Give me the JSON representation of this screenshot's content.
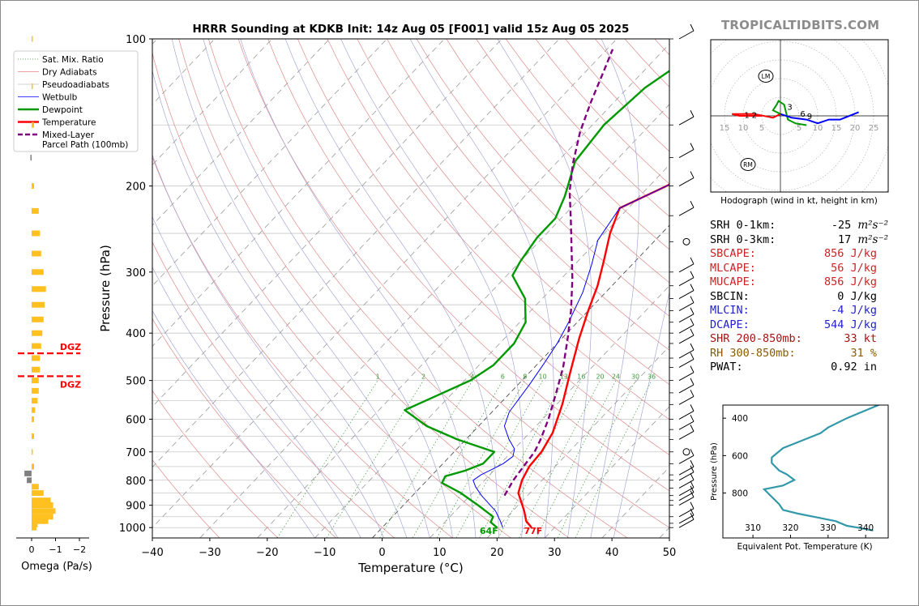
{
  "watermark": "TROPICALTIDBITS.COM",
  "chart_data": [
    {
      "type": "line",
      "name": "skew-t",
      "title": "HRRR Sounding at KDKB Init: 14z Aug 05 [F001] valid 15z Aug 05 2025",
      "xlabel": "Temperature (°C)",
      "ylabel": "Pressure (hPa)",
      "xlim": [
        -40,
        50
      ],
      "ylim": [
        1050,
        100
      ],
      "y_scale": "log",
      "x_ticks": [
        "−40",
        "−30",
        "−20",
        "−10",
        "0",
        "10",
        "20",
        "30",
        "40",
        "50"
      ],
      "y_ticks": [
        "100",
        "200",
        "300",
        "400",
        "500",
        "600",
        "700",
        "800",
        "900",
        "1000"
      ],
      "mixing_ratio_labels": [
        "1",
        "2",
        "4",
        "6",
        "8",
        "10",
        "13",
        "16",
        "20",
        "24",
        "30",
        "36"
      ],
      "legend": {
        "placement": "top-left",
        "entries": [
          {
            "label": "Sat. Mix. Ratio",
            "color": "#2e8b2e",
            "style": "dotted"
          },
          {
            "label": "Dry Adiabats",
            "color": "#e08080",
            "style": "solid"
          },
          {
            "label": "Pseudoadiabats",
            "color": "#c0c0c0",
            "style": "solid"
          },
          {
            "label": "Wetbulb",
            "color": "#0000ff",
            "style": "solid"
          },
          {
            "label": "Dewpoint",
            "color": "#009900",
            "style": "solid"
          },
          {
            "label": "Temperature",
            "color": "#ff0000",
            "style": "solid"
          },
          {
            "label": "Mixed-Layer\nParcel Path (100mb)",
            "color": "#800080",
            "style": "dashed"
          }
        ]
      },
      "surface_labels": {
        "dewpoint": "64F",
        "temperature": "77F"
      },
      "series": [
        {
          "name": "Temperature",
          "color": "#ff0000",
          "points": [
            [
              26,
              1000
            ],
            [
              24,
              970
            ],
            [
              22,
              925
            ],
            [
              18,
              850
            ],
            [
              16.5,
              800
            ],
            [
              15.5,
              750
            ],
            [
              15.2,
              700
            ],
            [
              14,
              640
            ],
            [
              11,
              560
            ],
            [
              7,
              480
            ],
            [
              3,
              410
            ],
            [
              0,
              360
            ],
            [
              -2.5,
              320
            ],
            [
              -5.5,
              285
            ],
            [
              -9,
              250
            ],
            [
              -11.5,
              222
            ],
            [
              -7,
              200
            ],
            [
              -2.5,
              176
            ],
            [
              -2,
              150
            ],
            [
              -1.5,
              122
            ],
            [
              -1,
              110
            ],
            [
              -0.5,
              100
            ]
          ]
        },
        {
          "name": "Dewpoint",
          "color": "#009900",
          "points": [
            [
              20,
              1000
            ],
            [
              18,
              975
            ],
            [
              17.5,
              950
            ],
            [
              13,
              900
            ],
            [
              8,
              850
            ],
            [
              3,
              810
            ],
            [
              2.5,
              785
            ],
            [
              5,
              765
            ],
            [
              7,
              740
            ],
            [
              7,
              700
            ],
            [
              -1.5,
              660
            ],
            [
              -9,
              620
            ],
            [
              -15.5,
              575
            ],
            [
              -13,
              545
            ],
            [
              -9,
              500
            ],
            [
              -7.5,
              465
            ],
            [
              -7.5,
              420
            ],
            [
              -9,
              380
            ],
            [
              -13,
              340
            ],
            [
              -19,
              305
            ],
            [
              -20,
              285
            ],
            [
              -21,
              255
            ],
            [
              -21,
              233
            ],
            [
              -23,
              210
            ],
            [
              -27,
              178
            ],
            [
              -28,
              150
            ],
            [
              -27,
              126
            ],
            [
              -25,
              113
            ],
            [
              -23,
              100
            ]
          ]
        },
        {
          "name": "Wetbulb",
          "color": "#0000ff",
          "points": [
            [
              21,
              1000
            ],
            [
              19.5,
              970
            ],
            [
              17,
              925
            ],
            [
              12,
              860
            ],
            [
              9.5,
              825
            ],
            [
              8,
              800
            ],
            [
              8.5,
              780
            ],
            [
              9.5,
              760
            ],
            [
              10.5,
              740
            ],
            [
              11,
              715
            ],
            [
              10,
              690
            ],
            [
              7.5,
              660
            ],
            [
              4.5,
              620
            ],
            [
              3,
              580
            ],
            [
              2,
              510
            ],
            [
              1,
              460
            ],
            [
              0,
              420
            ],
            [
              -1.5,
              380
            ],
            [
              -4,
              330
            ],
            [
              -7,
              290
            ],
            [
              -10,
              258
            ],
            [
              -11.5,
              222
            ],
            [
              -7,
              200
            ],
            [
              -3,
              176
            ],
            [
              -2.5,
              150
            ],
            [
              -2,
              125
            ],
            [
              -1,
              110
            ],
            [
              -0.5,
              100
            ]
          ]
        },
        {
          "name": "Mixed-Layer Parcel Path (100mb)",
          "color": "#800080",
          "points": [
            [
              16,
              860
            ],
            [
              15,
              800
            ],
            [
              14.5,
              750
            ],
            [
              14,
              700
            ],
            [
              13,
              660
            ],
            [
              11,
              600
            ],
            [
              8,
              530
            ],
            [
              5,
              470
            ],
            [
              1,
              410
            ],
            [
              -3,
              360
            ],
            [
              -8,
              310
            ],
            [
              -13,
              270
            ],
            [
              -18,
              235
            ],
            [
              -23,
              205
            ],
            [
              -27,
              180
            ],
            [
              -31,
              155
            ],
            [
              -34,
              135
            ],
            [
              -37,
              116
            ],
            [
              -39,
              105
            ]
          ]
        }
      ],
      "dgz_label": "DGZ",
      "dgz_pressures": [
        440,
        490
      ]
    },
    {
      "type": "bar",
      "name": "omega",
      "xlabel": "Omega (Pa/s)",
      "x_ticks": [
        "0",
        "−1",
        "−2"
      ],
      "color": "#ffc020",
      "levels": [
        [
          1000,
          -0.2
        ],
        [
          985,
          -0.25
        ],
        [
          970,
          -0.7
        ],
        [
          950,
          -0.9
        ],
        [
          925,
          -1.0
        ],
        [
          900,
          -0.9
        ],
        [
          880,
          -0.8
        ],
        [
          850,
          -0.5
        ],
        [
          825,
          -0.3
        ],
        [
          800,
          0.2
        ],
        [
          775,
          0.3
        ],
        [
          750,
          -0.1
        ],
        [
          700,
          -0.05
        ],
        [
          650,
          -0.1
        ],
        [
          600,
          -0.1
        ],
        [
          575,
          -0.15
        ],
        [
          550,
          -0.25
        ],
        [
          525,
          -0.3
        ],
        [
          500,
          -0.3
        ],
        [
          475,
          -0.35
        ],
        [
          450,
          -0.35
        ],
        [
          425,
          -0.4
        ],
        [
          400,
          -0.45
        ],
        [
          375,
          -0.5
        ],
        [
          350,
          -0.55
        ],
        [
          325,
          -0.6
        ],
        [
          300,
          -0.5
        ],
        [
          275,
          -0.4
        ],
        [
          250,
          -0.35
        ],
        [
          225,
          -0.3
        ],
        [
          200,
          -0.1
        ],
        [
          175,
          0.05
        ],
        [
          150,
          -0.1
        ],
        [
          125,
          -0.05
        ],
        [
          100,
          -0.05
        ]
      ]
    },
    {
      "type": "scatter",
      "name": "hodograph",
      "xlabel": "Hodograph (wind in kt, height in km)",
      "ring_labels": [
        "15",
        "10",
        "5",
        "5",
        "10",
        "15",
        "20",
        "25"
      ],
      "markers": {
        "lm": "LM",
        "rm": "RM"
      },
      "height_labels": [
        "1",
        "2",
        "3",
        "6",
        "9"
      ],
      "segments": [
        {
          "color": "#ff0000",
          "points": [
            [
              -5,
              0
            ],
            [
              -8,
              0
            ],
            [
              -11,
              0
            ],
            [
              -13,
              0.5
            ],
            [
              -7,
              0.5
            ],
            [
              -2,
              -0.5
            ],
            [
              0,
              0.5
            ]
          ]
        },
        {
          "color": "#009900",
          "points": [
            [
              0,
              0.5
            ],
            [
              -2,
              1.5
            ],
            [
              -1,
              3
            ],
            [
              -0.5,
              4
            ],
            [
              1,
              3
            ],
            [
              2,
              -1
            ],
            [
              4,
              -2
            ],
            [
              7,
              -2.5
            ]
          ]
        },
        {
          "color": "#0000ff",
          "points": [
            [
              0,
              0.5
            ],
            [
              3,
              -0.5
            ],
            [
              7,
              -1
            ],
            [
              10,
              -2
            ],
            [
              13,
              -1
            ],
            [
              16,
              -1
            ],
            [
              21,
              1
            ]
          ]
        }
      ],
      "height_label_positions": [
        [
          -9,
          0.3
        ],
        [
          -7,
          0.3
        ],
        [
          2.5,
          2.5
        ],
        [
          6,
          0.6
        ],
        [
          7.8,
          0
        ]
      ],
      "lm_pos": [
        4,
        11
      ],
      "rm_pos": [
        -9,
        -13
      ]
    },
    {
      "type": "line",
      "name": "theta-e",
      "xlabel": "Equivalent Pot. Temperature (K)",
      "ylabel": "Pressure (hPa)",
      "x_ticks": [
        "310",
        "320",
        "330",
        "340"
      ],
      "y_ticks": [
        "400",
        "600",
        "800"
      ],
      "color": "#3399aa",
      "points": [
        [
          342,
          1000
        ],
        [
          338,
          985
        ],
        [
          335,
          975
        ],
        [
          332,
          950
        ],
        [
          327,
          930
        ],
        [
          322,
          910
        ],
        [
          318,
          890
        ],
        [
          317,
          860
        ],
        [
          316,
          840
        ],
        [
          314,
          800
        ],
        [
          313,
          780
        ],
        [
          318,
          760
        ],
        [
          321,
          730
        ],
        [
          319,
          700
        ],
        [
          317,
          680
        ],
        [
          315,
          640
        ],
        [
          315,
          610
        ],
        [
          318,
          560
        ],
        [
          323,
          520
        ],
        [
          328,
          480
        ],
        [
          330,
          450
        ],
        [
          335,
          400
        ],
        [
          341,
          350
        ],
        [
          347,
          300
        ],
        [
          352,
          250
        ]
      ]
    }
  ],
  "params": [
    {
      "label": "SRH 0-1km:",
      "value": "-25",
      "unit": "m²s⁻²",
      "color": "#000000"
    },
    {
      "label": "SRH 0-3km:",
      "value": "17",
      "unit": "m²s⁻²",
      "color": "#000000"
    },
    {
      "label": "SBCAPE:",
      "value": "856 J/kg",
      "color": "#cc2222"
    },
    {
      "label": "MLCAPE:",
      "value": "56 J/kg",
      "color": "#cc2222"
    },
    {
      "label": "MUCAPE:",
      "value": "856 J/kg",
      "color": "#cc2222"
    },
    {
      "label": "SBCIN:",
      "value": "0 J/kg",
      "color": "#000000"
    },
    {
      "label": "MLCIN:",
      "value": "-4 J/kg",
      "color": "#2222cc"
    },
    {
      "label": "DCAPE:",
      "value": "544 J/kg",
      "color": "#2222cc"
    },
    {
      "label": "SHR 200-850mb:",
      "value": "33 kt",
      "color": "#aa1111"
    },
    {
      "label": "RH 300-850mb:",
      "value": "31 %",
      "color": "#8a5a00"
    },
    {
      "label": "PWAT:",
      "value": "0.92 in",
      "color": "#000000"
    }
  ]
}
